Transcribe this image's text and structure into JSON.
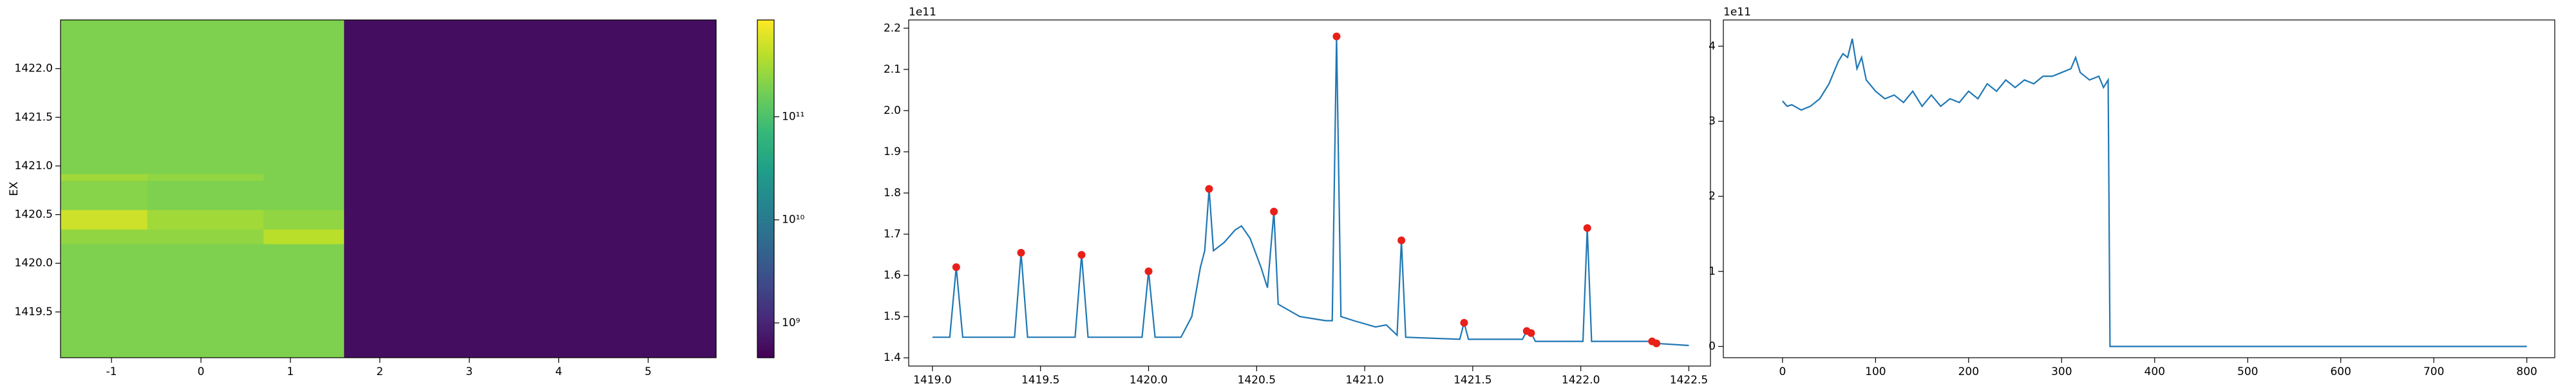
{
  "chart_data": [
    {
      "type": "heatmap",
      "y_label": "EX",
      "colormap": "viridis",
      "color_scale": "log",
      "x_edges": [
        -1.57,
        -0.6,
        0.7,
        1.6,
        5.76
      ],
      "y_edges": [
        1419.03,
        1420.2,
        1420.35,
        1420.55,
        1420.85,
        1420.92,
        1422.5
      ],
      "z": [
        [
          200000000000,
          200000000000,
          200000000000,
          600000000
        ],
        [
          250000000000,
          250000000000,
          400000000000,
          600000000
        ],
        [
          500000000000,
          300000000000,
          250000000000,
          600000000
        ],
        [
          220000000000,
          200000000000,
          200000000000,
          600000000
        ],
        [
          300000000000,
          250000000000,
          200000000000,
          600000000
        ],
        [
          200000000000,
          200000000000,
          200000000000,
          600000000
        ]
      ],
      "clim": [
        460000000,
        870000000000
      ],
      "colorbar_ticks": [
        {
          "value": 1000000000,
          "label": "10⁹"
        },
        {
          "value": 10000000000,
          "label": "10¹⁰"
        },
        {
          "value": 100000000000,
          "label": "10¹¹"
        }
      ],
      "xlim": [
        -1.57,
        5.76
      ],
      "xticks": [
        -1,
        0,
        1,
        2,
        3,
        4,
        5
      ],
      "ylim": [
        1419.03,
        1422.5
      ],
      "yticks": [
        1419.5,
        {
          "value": 1420,
          "label": "1420.0"
        },
        1420.5,
        {
          "value": 1421,
          "label": "1421.0"
        },
        1421.5,
        {
          "value": 1422,
          "label": "1422.0"
        }
      ]
    },
    {
      "type": "line",
      "color": "#1f77b4",
      "y_offset_text": "1e11",
      "x": [
        1419.0,
        1419.08,
        1419.11,
        1419.14,
        1419.38,
        1419.41,
        1419.44,
        1419.66,
        1419.69,
        1419.72,
        1419.97,
        1420.0,
        1420.03,
        1420.15,
        1420.2,
        1420.24,
        1420.26,
        1420.28,
        1420.3,
        1420.35,
        1420.4,
        1420.43,
        1420.47,
        1420.52,
        1420.55,
        1420.58,
        1420.6,
        1420.7,
        1420.82,
        1420.85,
        1420.87,
        1420.89,
        1420.95,
        1421.05,
        1421.1,
        1421.15,
        1421.17,
        1421.19,
        1421.44,
        1421.46,
        1421.48,
        1421.73,
        1421.75,
        1421.77,
        1421.79,
        1422.01,
        1422.03,
        1422.05,
        1422.31,
        1422.33,
        1422.35,
        1422.5
      ],
      "values": [
        1.45,
        1.45,
        1.62,
        1.45,
        1.45,
        1.655,
        1.45,
        1.45,
        1.65,
        1.45,
        1.45,
        1.61,
        1.45,
        1.45,
        1.5,
        1.62,
        1.66,
        1.81,
        1.66,
        1.68,
        1.71,
        1.72,
        1.69,
        1.62,
        1.57,
        1.755,
        1.53,
        1.5,
        1.49,
        1.49,
        2.18,
        1.5,
        1.49,
        1.475,
        1.48,
        1.455,
        1.685,
        1.45,
        1.445,
        1.485,
        1.445,
        1.445,
        1.465,
        1.46,
        1.44,
        1.44,
        1.715,
        1.44,
        1.44,
        1.44,
        1.435,
        1.43
      ],
      "markers": {
        "color": "#e8201a",
        "x": [
          1419.11,
          1419.41,
          1419.69,
          1420.0,
          1420.28,
          1420.58,
          1420.87,
          1421.17,
          1421.46,
          1421.75,
          1421.77,
          1422.03,
          1422.33,
          1422.35
        ],
        "values": [
          1.62,
          1.655,
          1.65,
          1.61,
          1.81,
          1.755,
          2.18,
          1.685,
          1.485,
          1.465,
          1.46,
          1.715,
          1.44,
          1.435
        ]
      },
      "xlim": [
        1418.89,
        1422.6
      ],
      "xticks": [
        {
          "value": 1419,
          "label": "1419.0"
        },
        1419.5,
        {
          "value": 1420,
          "label": "1420.0"
        },
        1420.5,
        {
          "value": 1421,
          "label": "1421.0"
        },
        1421.5,
        {
          "value": 1422,
          "label": "1422.0"
        },
        1422.5
      ],
      "ylim": [
        1.38,
        2.22
      ],
      "yticks": [
        1.4,
        1.5,
        1.6,
        1.7,
        1.8,
        1.9,
        {
          "value": 2,
          "label": "2.0"
        },
        2.1,
        2.2
      ]
    },
    {
      "type": "line",
      "color": "#1f77b4",
      "y_offset_text": "1e11",
      "x": [
        0,
        5,
        10,
        20,
        30,
        40,
        50,
        60,
        65,
        70,
        75,
        80,
        85,
        90,
        100,
        110,
        120,
        130,
        140,
        150,
        160,
        170,
        180,
        190,
        200,
        210,
        220,
        230,
        240,
        250,
        260,
        270,
        280,
        290,
        300,
        310,
        315,
        320,
        330,
        340,
        345,
        350,
        352,
        800
      ],
      "values": [
        3.27,
        3.2,
        3.22,
        3.15,
        3.2,
        3.3,
        3.5,
        3.8,
        3.9,
        3.85,
        4.1,
        3.7,
        3.85,
        3.55,
        3.4,
        3.3,
        3.35,
        3.25,
        3.4,
        3.2,
        3.35,
        3.2,
        3.3,
        3.25,
        3.4,
        3.3,
        3.5,
        3.4,
        3.55,
        3.45,
        3.55,
        3.5,
        3.6,
        3.6,
        3.65,
        3.7,
        3.85,
        3.65,
        3.55,
        3.6,
        3.45,
        3.55,
        0,
        0
      ],
      "xlim": [
        -63.6,
        830
      ],
      "xticks": [
        0,
        100,
        200,
        300,
        400,
        500,
        600,
        700,
        800
      ],
      "ylim": [
        -0.15,
        4.35
      ],
      "yticks": [
        0,
        1,
        2,
        3,
        4
      ]
    }
  ]
}
